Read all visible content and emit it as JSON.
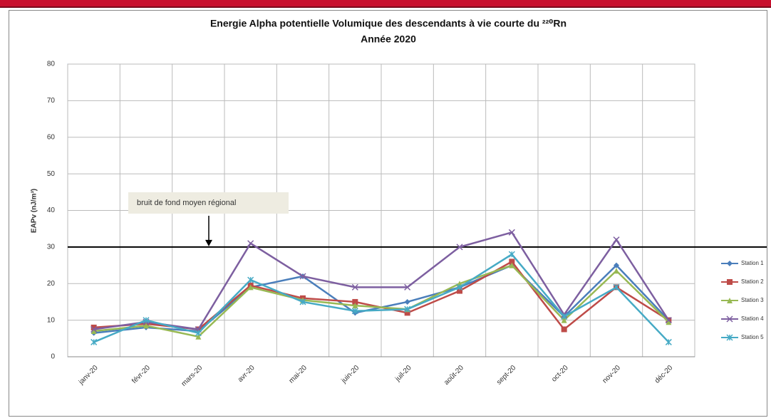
{
  "chart_data": {
    "type": "line",
    "title": "Energie Alpha potentielle Volumique des descendants à vie courte du ²²⁰Rn",
    "subtitle": "Année 2020",
    "y_label": "EAPv (nJ/m³)",
    "categories": [
      "janv-20",
      "févr-20",
      "mars-20",
      "avr-20",
      "mai-20",
      "juin-20",
      "juil-20",
      "août-20",
      "sept-20",
      "oct-20",
      "nov-20",
      "déc-20"
    ],
    "series": [
      {
        "name": "Station 1",
        "color": "#4a7ebb",
        "marker": "diamond",
        "values": [
          6.5,
          8,
          7,
          19,
          22,
          12,
          15,
          19,
          25,
          11,
          25,
          10
        ]
      },
      {
        "name": "Station 2",
        "color": "#be4b48",
        "marker": "square",
        "values": [
          8,
          9,
          7.5,
          19.5,
          16,
          15,
          12,
          18,
          26,
          7.5,
          19,
          10
        ]
      },
      {
        "name": "Station 3",
        "color": "#98b954",
        "marker": "triangle",
        "values": [
          7,
          8.5,
          5.5,
          19,
          15.5,
          14,
          13,
          20,
          25,
          10,
          23.5,
          9.5
        ]
      },
      {
        "name": "Station 4",
        "color": "#7d5fa0",
        "marker": "x",
        "values": [
          7.5,
          9.5,
          7.5,
          31,
          22,
          19,
          19,
          30,
          34,
          11.5,
          32,
          10
        ]
      },
      {
        "name": "Station 5",
        "color": "#46aac5",
        "marker": "star",
        "values": [
          4,
          10,
          6.5,
          21,
          15,
          12.5,
          13,
          19,
          28,
          11,
          19,
          4
        ]
      }
    ],
    "ylim": [
      0,
      80
    ],
    "yticks": [
      0,
      10,
      20,
      30,
      40,
      50,
      60,
      70,
      80
    ],
    "grid": true,
    "legend": "right",
    "reference_line": {
      "value": 30,
      "color": "#000000",
      "annotation": "bruit de fond moyen régional"
    }
  }
}
